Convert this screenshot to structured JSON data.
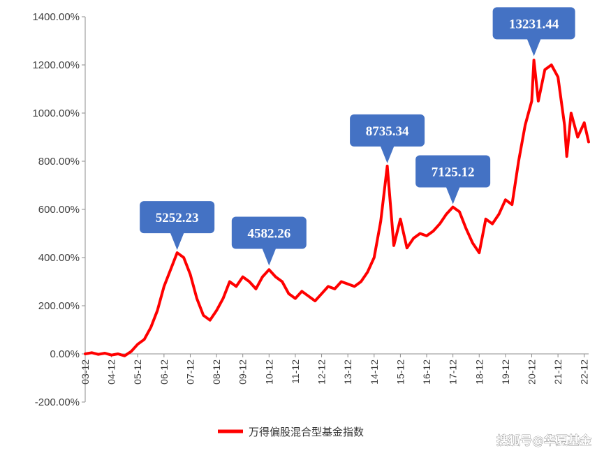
{
  "chart_data": {
    "type": "line",
    "series": [
      {
        "name": "万得偏股混合型基金指数",
        "color": "#ff0000",
        "points": [
          [
            "2003-12",
            0
          ],
          [
            "2004-03",
            5
          ],
          [
            "2004-06",
            -2
          ],
          [
            "2004-09",
            3
          ],
          [
            "2004-12",
            -5
          ],
          [
            "2005-03",
            0
          ],
          [
            "2005-06",
            -8
          ],
          [
            "2005-09",
            10
          ],
          [
            "2005-12",
            40
          ],
          [
            "2006-03",
            60
          ],
          [
            "2006-06",
            110
          ],
          [
            "2006-09",
            180
          ],
          [
            "2006-12",
            280
          ],
          [
            "2007-03",
            350
          ],
          [
            "2007-06",
            420
          ],
          [
            "2007-09",
            400
          ],
          [
            "2007-12",
            330
          ],
          [
            "2008-03",
            230
          ],
          [
            "2008-06",
            160
          ],
          [
            "2008-09",
            140
          ],
          [
            "2008-12",
            180
          ],
          [
            "2009-03",
            230
          ],
          [
            "2009-06",
            300
          ],
          [
            "2009-09",
            280
          ],
          [
            "2009-12",
            320
          ],
          [
            "2010-03",
            300
          ],
          [
            "2010-06",
            270
          ],
          [
            "2010-09",
            320
          ],
          [
            "2010-12",
            350
          ],
          [
            "2011-03",
            320
          ],
          [
            "2011-06",
            300
          ],
          [
            "2011-09",
            250
          ],
          [
            "2011-12",
            230
          ],
          [
            "2012-03",
            260
          ],
          [
            "2012-06",
            240
          ],
          [
            "2012-09",
            220
          ],
          [
            "2012-12",
            250
          ],
          [
            "2013-03",
            280
          ],
          [
            "2013-06",
            270
          ],
          [
            "2013-09",
            300
          ],
          [
            "2013-12",
            290
          ],
          [
            "2014-03",
            280
          ],
          [
            "2014-06",
            300
          ],
          [
            "2014-09",
            340
          ],
          [
            "2014-12",
            400
          ],
          [
            "2015-03",
            550
          ],
          [
            "2015-06",
            780
          ],
          [
            "2015-09",
            450
          ],
          [
            "2015-12",
            560
          ],
          [
            "2016-03",
            440
          ],
          [
            "2016-06",
            480
          ],
          [
            "2016-09",
            500
          ],
          [
            "2016-12",
            490
          ],
          [
            "2017-03",
            510
          ],
          [
            "2017-06",
            540
          ],
          [
            "2017-09",
            580
          ],
          [
            "2017-12",
            610
          ],
          [
            "2018-03",
            590
          ],
          [
            "2018-06",
            520
          ],
          [
            "2018-09",
            460
          ],
          [
            "2018-12",
            420
          ],
          [
            "2019-03",
            560
          ],
          [
            "2019-06",
            540
          ],
          [
            "2019-09",
            580
          ],
          [
            "2019-12",
            640
          ],
          [
            "2020-03",
            620
          ],
          [
            "2020-06",
            800
          ],
          [
            "2020-09",
            950
          ],
          [
            "2020-12",
            1050
          ],
          [
            "2021-01",
            1220
          ],
          [
            "2021-03",
            1050
          ],
          [
            "2021-06",
            1180
          ],
          [
            "2021-09",
            1200
          ],
          [
            "2021-12",
            1150
          ],
          [
            "2022-03",
            950
          ],
          [
            "2022-04",
            820
          ],
          [
            "2022-06",
            1000
          ],
          [
            "2022-09",
            900
          ],
          [
            "2022-12",
            960
          ],
          [
            "2023-02",
            880
          ]
        ]
      }
    ],
    "annotations": [
      {
        "label": "5252.23",
        "x": "2007-06",
        "y": 420
      },
      {
        "label": "4582.26",
        "x": "2010-12",
        "y": 355
      },
      {
        "label": "8735.34",
        "x": "2015-06",
        "y": 780
      },
      {
        "label": "7125.12",
        "x": "2017-12",
        "y": 610
      },
      {
        "label": "13231.44",
        "x": "2021-01",
        "y": 1225
      }
    ],
    "yticks": [
      "1400.00%",
      "1200.00%",
      "1000.00%",
      "800.00%",
      "600.00%",
      "400.00%",
      "200.00%",
      "0.00%",
      "-200.00%"
    ],
    "xticks": [
      "03-12",
      "04-12",
      "05-12",
      "06-12",
      "07-12",
      "08-12",
      "09-12",
      "10-12",
      "11-12",
      "12-12",
      "13-12",
      "14-12",
      "15-12",
      "16-12",
      "17-12",
      "18-12",
      "19-12",
      "20-12",
      "21-12",
      "22-12"
    ],
    "ylim": [
      -200,
      1400
    ],
    "xlim": [
      "2003-12",
      "2023-02"
    ],
    "grid": false,
    "legend_position": "bottom-center",
    "callout_color": "#4472c4"
  },
  "watermark": "搜狐号@华夏基金"
}
